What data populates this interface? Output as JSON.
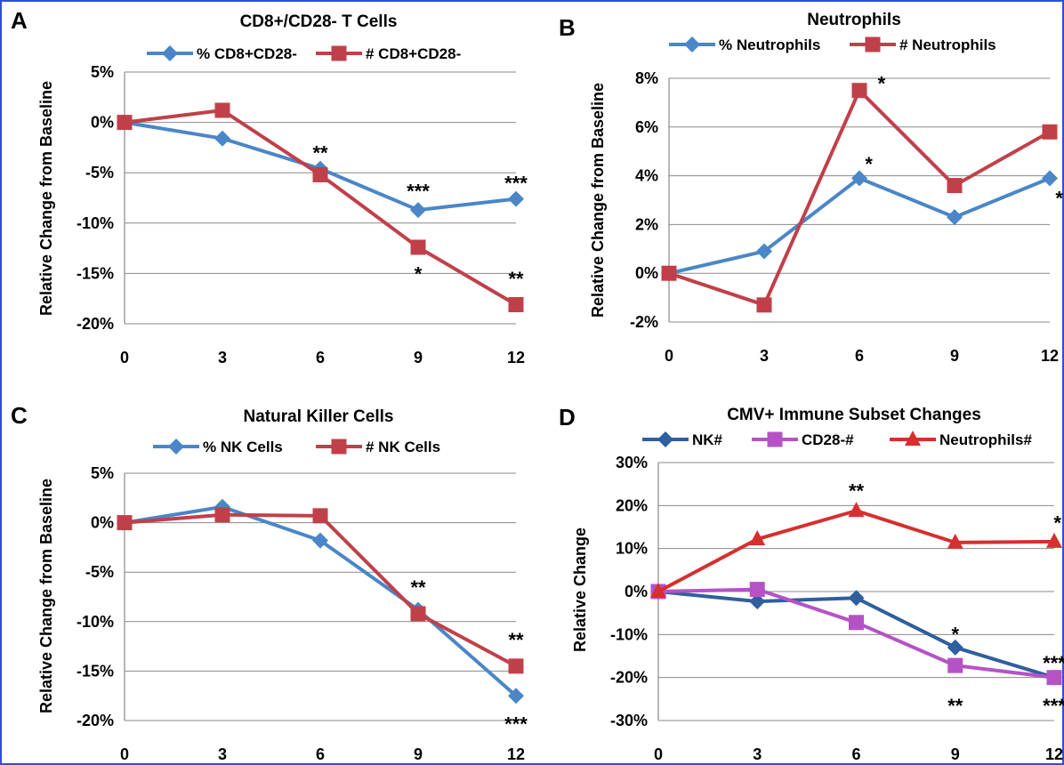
{
  "chart_data": [
    {
      "type": "line",
      "panel": "A",
      "title": "CD8+/CD28- T Cells",
      "ylabel": "Relative Change from Baseline",
      "x": [
        0,
        3,
        6,
        9,
        12
      ],
      "ylim": [
        -20,
        5
      ],
      "y_ticks": [
        "5%",
        "0%",
        "-5%",
        "-10%",
        "-15%",
        "-20%"
      ],
      "y_tick_values": [
        5,
        0,
        -5,
        -10,
        -15,
        -20
      ],
      "series": [
        {
          "name": "% CD8+CD28-",
          "color": "#4a86c8",
          "marker": "diamond",
          "values": [
            0,
            -1.6,
            -4.6,
            -8.7,
            -7.6
          ]
        },
        {
          "name": "# CD8+CD28-",
          "color": "#c0404a",
          "marker": "square",
          "values": [
            0,
            1.2,
            -5.2,
            -12.4,
            -18.1
          ]
        }
      ],
      "annotations": [
        {
          "text": "**",
          "x": 6,
          "y": -3.0
        },
        {
          "text": "***",
          "x": 9,
          "y": -6.8
        },
        {
          "text": "***",
          "x": 12,
          "y": -6.0
        },
        {
          "text": "*",
          "x": 9,
          "y": -15.0
        },
        {
          "text": "**",
          "x": 12,
          "y": -15.5
        }
      ]
    },
    {
      "type": "line",
      "panel": "B",
      "title": "Neutrophils",
      "ylabel": "Relative Change from Baseline",
      "x": [
        0,
        3,
        6,
        9,
        12
      ],
      "ylim": [
        -2,
        8
      ],
      "y_ticks": [
        "8%",
        "6%",
        "4%",
        "2%",
        "0%",
        "-2%"
      ],
      "y_tick_values": [
        8,
        6,
        4,
        2,
        0,
        -2
      ],
      "series": [
        {
          "name": "% Neutrophils",
          "color": "#4a86c8",
          "marker": "diamond",
          "values": [
            0,
            0.9,
            3.9,
            2.3,
            3.9
          ]
        },
        {
          "name": "# Neutrophils",
          "color": "#c0404a",
          "marker": "square",
          "values": [
            0,
            -1.3,
            7.5,
            3.6,
            5.8
          ]
        }
      ],
      "annotations": [
        {
          "text": "*",
          "x": 6.7,
          "y": 7.8
        },
        {
          "text": "*",
          "x": 6.3,
          "y": 4.5
        },
        {
          "text": "*",
          "x": 12.3,
          "y": 3.1
        }
      ]
    },
    {
      "type": "line",
      "panel": "C",
      "title": "Natural Killer Cells",
      "ylabel": "Relative Change from Baseline",
      "x": [
        0,
        3,
        6,
        9,
        12
      ],
      "ylim": [
        -20,
        5
      ],
      "y_ticks": [
        "5%",
        "0%",
        "-5%",
        "-10%",
        "-15%",
        "-20%"
      ],
      "y_tick_values": [
        5,
        0,
        -5,
        -10,
        -15,
        -20
      ],
      "series": [
        {
          "name": "% NK Cells",
          "color": "#4a86c8",
          "marker": "diamond",
          "values": [
            0,
            1.6,
            -1.8,
            -8.8,
            -17.5
          ]
        },
        {
          "name": "# NK Cells",
          "color": "#c0404a",
          "marker": "square",
          "values": [
            0,
            0.8,
            0.7,
            -9.2,
            -14.5
          ]
        }
      ],
      "annotations": [
        {
          "text": "**",
          "x": 9,
          "y": -6.5
        },
        {
          "text": "**",
          "x": 12,
          "y": -11.8
        },
        {
          "text": "***",
          "x": 12,
          "y": -20.3
        }
      ]
    },
    {
      "type": "line",
      "panel": "D",
      "title": "CMV+ Immune Subset Changes",
      "ylabel": "Relative  Change",
      "x": [
        0,
        3,
        6,
        9,
        12
      ],
      "ylim": [
        -30,
        30
      ],
      "y_ticks": [
        "30%",
        "20%",
        "10%",
        "0%",
        "-10%",
        "-20%",
        "-30%"
      ],
      "y_tick_values": [
        30,
        20,
        10,
        0,
        -10,
        -20,
        -30
      ],
      "series": [
        {
          "name": "NK#",
          "color": "#2f5f9e",
          "marker": "diamond",
          "values": [
            0,
            -2.3,
            -1.5,
            -13,
            -20
          ]
        },
        {
          "name": "CD28-#",
          "color": "#b553c6",
          "marker": "square",
          "values": [
            0,
            0.5,
            -7.2,
            -17.2,
            -20
          ]
        },
        {
          "name": "Neutrophils#",
          "color": "#d62f2f",
          "marker": "triangle",
          "values": [
            0,
            12.2,
            18.8,
            11.4,
            11.6
          ]
        }
      ],
      "annotations": [
        {
          "text": "**",
          "x": 6,
          "y": 23.5
        },
        {
          "text": "*",
          "x": 12.1,
          "y": 16
        },
        {
          "text": "*",
          "x": 9,
          "y": -9.8
        },
        {
          "text": "***",
          "x": 12,
          "y": -16.6
        },
        {
          "text": "**",
          "x": 9,
          "y": -26.5
        },
        {
          "text": "***",
          "x": 12,
          "y": -26.5
        }
      ]
    }
  ]
}
